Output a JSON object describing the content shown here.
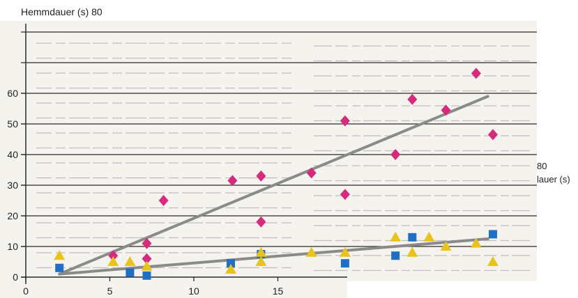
{
  "top_label": "Hemmdauer (s) 80",
  "right_label": {
    "line1": "80",
    "line2": "lauer (s)"
  },
  "colors": {
    "background": "#f5f3ee",
    "grid": "#2a2a2a",
    "text_lines": "#8c8c8c",
    "trend": "#8a8a8a",
    "series_diamond": "#d62b7c",
    "series_square": "#1f6fc4",
    "series_triangle": "#e9c21a"
  },
  "chart_data": {
    "type": "scatter",
    "xlim": [
      0,
      30
    ],
    "ylim": [
      0,
      80
    ],
    "x_ticks": [
      "0",
      "5",
      "10",
      "15"
    ],
    "y_ticks": [
      "0",
      "10",
      "20",
      "30",
      "40",
      "50",
      "60"
    ],
    "grid": "horizontal",
    "series": [
      {
        "marker": "diamond",
        "color": "#d62b7c",
        "points": [
          [
            5.2,
            7
          ],
          [
            7.2,
            11
          ],
          [
            7.2,
            6
          ],
          [
            8.2,
            25
          ],
          [
            12.3,
            31.5
          ],
          [
            14.0,
            33
          ],
          [
            14.0,
            18
          ],
          [
            17.0,
            34
          ],
          [
            19.0,
            51
          ],
          [
            19.0,
            27
          ],
          [
            22.0,
            40
          ],
          [
            23.0,
            58
          ],
          [
            25.0,
            54.5
          ],
          [
            26.8,
            66.5
          ],
          [
            27.8,
            46.5
          ]
        ]
      },
      {
        "marker": "square",
        "color": "#1f6fc4",
        "points": [
          [
            2.0,
            3
          ],
          [
            6.2,
            1.5
          ],
          [
            7.2,
            0.5
          ],
          [
            12.2,
            4.5
          ],
          [
            14.0,
            7.5
          ],
          [
            19.0,
            4.5
          ],
          [
            22.0,
            7
          ],
          [
            23.0,
            13
          ],
          [
            27.8,
            14
          ]
        ]
      },
      {
        "marker": "triangle",
        "color": "#e9c21a",
        "points": [
          [
            2.0,
            7
          ],
          [
            5.2,
            5
          ],
          [
            6.2,
            5
          ],
          [
            7.2,
            3.5
          ],
          [
            12.2,
            2.5
          ],
          [
            14.0,
            8
          ],
          [
            14.0,
            5
          ],
          [
            17.0,
            8
          ],
          [
            19.0,
            8
          ],
          [
            22.0,
            13
          ],
          [
            23.0,
            8
          ],
          [
            24.0,
            13
          ],
          [
            25.0,
            10
          ],
          [
            26.8,
            11
          ],
          [
            27.8,
            5
          ]
        ]
      }
    ],
    "trend_lines": [
      {
        "color": "#8a8a8a",
        "from": [
          2.0,
          1
        ],
        "to": [
          27.5,
          59
        ]
      },
      {
        "color": "#8a8a8a",
        "from": [
          2.0,
          1
        ],
        "to": [
          27.5,
          12.5
        ]
      }
    ]
  }
}
